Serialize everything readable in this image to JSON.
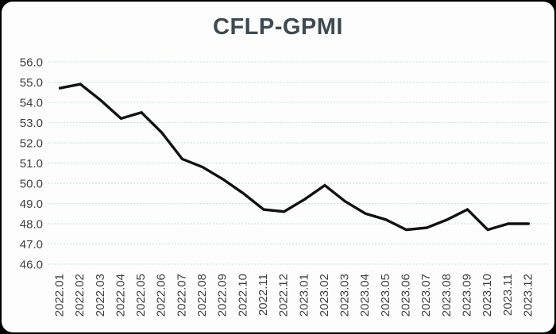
{
  "chart_data": {
    "type": "line",
    "title": "CFLP-GPMI",
    "xlabel": "",
    "ylabel": "",
    "categories": [
      "2022.01",
      "2022.02",
      "2022.03",
      "2022.04",
      "2022.05",
      "2022.06",
      "2022.07",
      "2022.08",
      "2022.09",
      "2022.10",
      "2022.11",
      "2022.12",
      "2023.01",
      "2023.02",
      "2023.03",
      "2023.04",
      "2023.05",
      "2023.06",
      "2023.07",
      "2023.08",
      "2023.09",
      "2023.10",
      "2023.11",
      "2023.12"
    ],
    "values": [
      54.7,
      54.9,
      54.1,
      53.2,
      53.5,
      52.5,
      51.2,
      50.8,
      50.2,
      49.5,
      48.7,
      48.6,
      49.2,
      49.9,
      49.1,
      48.5,
      48.2,
      47.7,
      47.8,
      48.2,
      48.7,
      47.7,
      48.0,
      48.0
    ],
    "ylim": [
      46.0,
      56.0
    ],
    "yticks": [
      "56.0",
      "55.0",
      "54.0",
      "53.0",
      "52.0",
      "51.0",
      "50.0",
      "49.0",
      "48.0",
      "47.0",
      "46.0"
    ],
    "grid": true,
    "grid_style": "dashed",
    "legend": false,
    "x_tick_rotation": -90,
    "colors": {
      "line": "#111111",
      "grid": "#bde2e6",
      "title": "#3d4a52",
      "axis_text": "#3f3f3f",
      "panel": "#fdfdfd",
      "background": "#000000"
    }
  }
}
